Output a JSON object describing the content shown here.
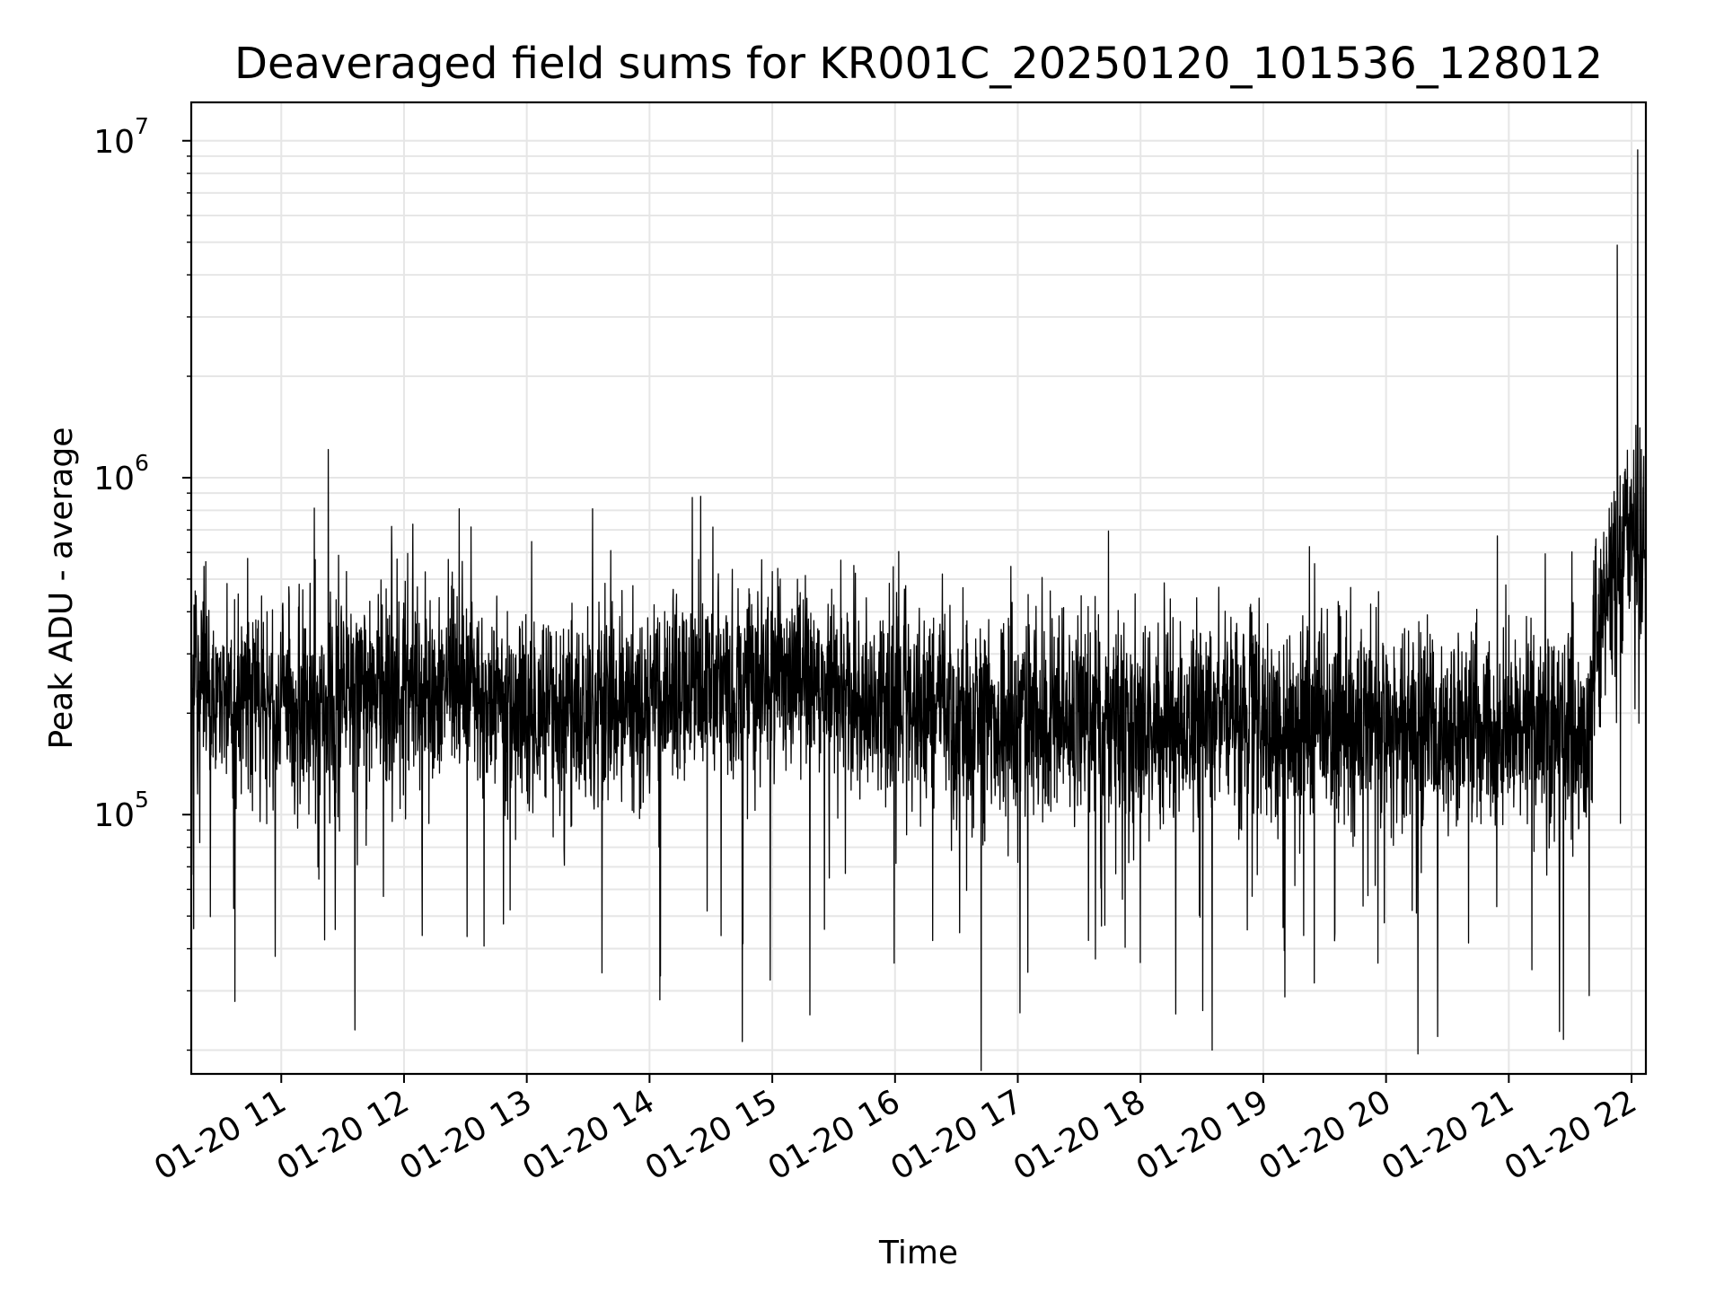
{
  "chart_data": {
    "type": "line",
    "title": "Deaveraged field sums for KR001C_20250120_101536_128012",
    "xlabel": "Time",
    "ylabel": "Peak ADU - average",
    "x_scale": "time",
    "y_scale": "log",
    "xlim": [
      "2025-01-20 10:16",
      "2025-01-20 22:07"
    ],
    "ylim": [
      17000,
      13000000
    ],
    "x_ticks": [
      "01-20 11",
      "01-20 12",
      "01-20 13",
      "01-20 14",
      "01-20 15",
      "01-20 16",
      "01-20 17",
      "01-20 18",
      "01-20 19",
      "01-20 20",
      "01-20 21",
      "01-20 22"
    ],
    "y_ticks": [
      {
        "base": "10",
        "exp": "5"
      },
      {
        "base": "10",
        "exp": "6"
      },
      {
        "base": "10",
        "exp": "7"
      }
    ],
    "grid": true,
    "line_color": "#000000",
    "series": [
      {
        "x": [
          "2025-01-20 10:16",
          "2025-01-20 10:30",
          "2025-01-20 11:00",
          "2025-01-20 11:30",
          "2025-01-20 12:00",
          "2025-01-20 12:30",
          "2025-01-20 13:00",
          "2025-01-20 13:30",
          "2025-01-20 14:00",
          "2025-01-20 14:30",
          "2025-01-20 15:00",
          "2025-01-20 15:30",
          "2025-01-20 16:00",
          "2025-01-20 16:30",
          "2025-01-20 17:00",
          "2025-01-20 17:30",
          "2025-01-20 18:00",
          "2025-01-20 18:30",
          "2025-01-20 19:00",
          "2025-01-20 19:30",
          "2025-01-20 20:00",
          "2025-01-20 20:30",
          "2025-01-20 21:00",
          "2025-01-20 21:30",
          "2025-01-20 21:39",
          "2025-01-20 21:45",
          "2025-01-20 21:52",
          "2025-01-20 22:00",
          "2025-01-20 22:07"
        ],
        "values": [
          250000,
          230000,
          210000,
          220000,
          230000,
          240000,
          200000,
          190000,
          220000,
          240000,
          250000,
          240000,
          210000,
          200000,
          200000,
          190000,
          180000,
          200000,
          190000,
          180000,
          190000,
          180000,
          170000,
          180000,
          170000,
          400000,
          550000,
          650000,
          700000
        ]
      }
    ],
    "notable_values": [
      {
        "x": "2025-01-20 14:25",
        "y": 880000
      },
      {
        "x": "2025-01-20 21:53",
        "y": 4900000
      },
      {
        "x": "2025-01-20 22:03",
        "y": 9400000
      },
      {
        "x": "2025-01-20 18:35",
        "y": 20000
      }
    ]
  }
}
